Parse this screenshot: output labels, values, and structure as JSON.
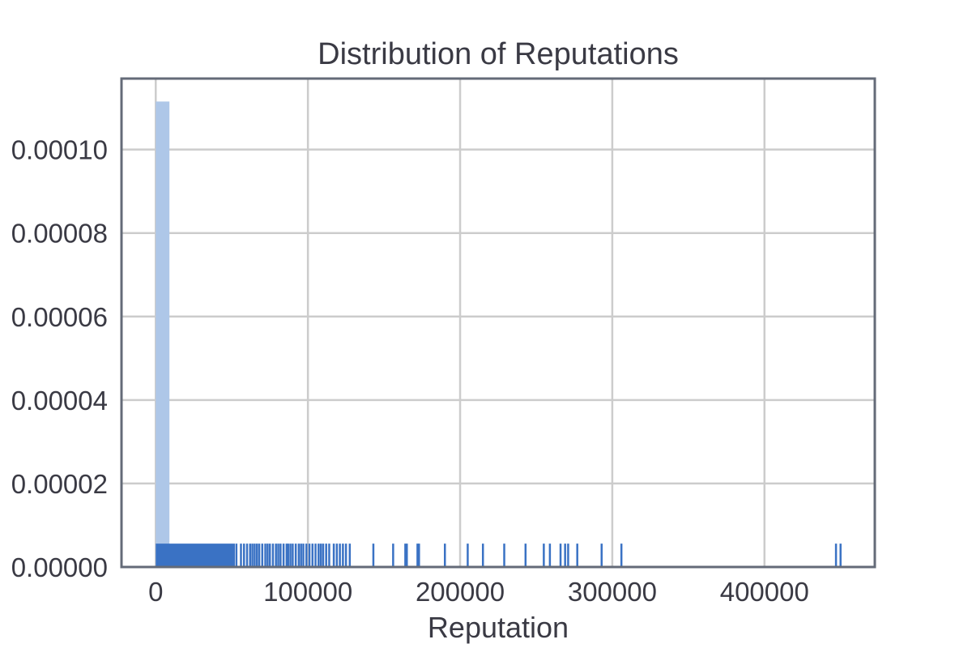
{
  "chart_data": {
    "type": "histogram",
    "title": "Distribution of Reputations",
    "xlabel": "Reputation",
    "ylabel": "",
    "xlim": [
      -22500,
      472500
    ],
    "ylim": [
      0,
      0.000117
    ],
    "grid": true,
    "x_ticks": [
      0,
      100000,
      200000,
      300000,
      400000
    ],
    "x_tick_labels": [
      "0",
      "100000",
      "200000",
      "300000",
      "400000"
    ],
    "y_ticks": [
      0,
      2e-05,
      4e-05,
      6e-05,
      8e-05,
      0.0001
    ],
    "y_tick_labels": [
      "0.00000",
      "0.00002",
      "0.00004",
      "0.00006",
      "0.00008",
      "0.00010"
    ],
    "bars": [
      {
        "x0": 0,
        "x1": 9000,
        "value": 0.0001115
      }
    ],
    "bar_color": "#aec7e8",
    "rug_color": "#3a72c4",
    "rug_height": 5.6e-06,
    "rug_dense_range": [
      0,
      52000
    ],
    "rug_values": [
      53000,
      56000,
      58000,
      60000,
      62000,
      63500,
      65000,
      66500,
      68000,
      70000,
      72000,
      73500,
      75000,
      77000,
      79000,
      80500,
      82000,
      84000,
      86000,
      87000,
      88500,
      90000,
      92000,
      94000,
      95500,
      97000,
      99000,
      101000,
      103000,
      105000,
      107000,
      108500,
      110000,
      112000,
      114000,
      117000,
      119000,
      121000,
      123000,
      125000,
      127500,
      143000,
      156000,
      164000,
      165000,
      172000,
      173000,
      190000,
      205000,
      215000,
      229000,
      243000,
      255000,
      259000,
      266000,
      269000,
      271000,
      277000,
      293000,
      306000,
      447000,
      450000
    ]
  }
}
